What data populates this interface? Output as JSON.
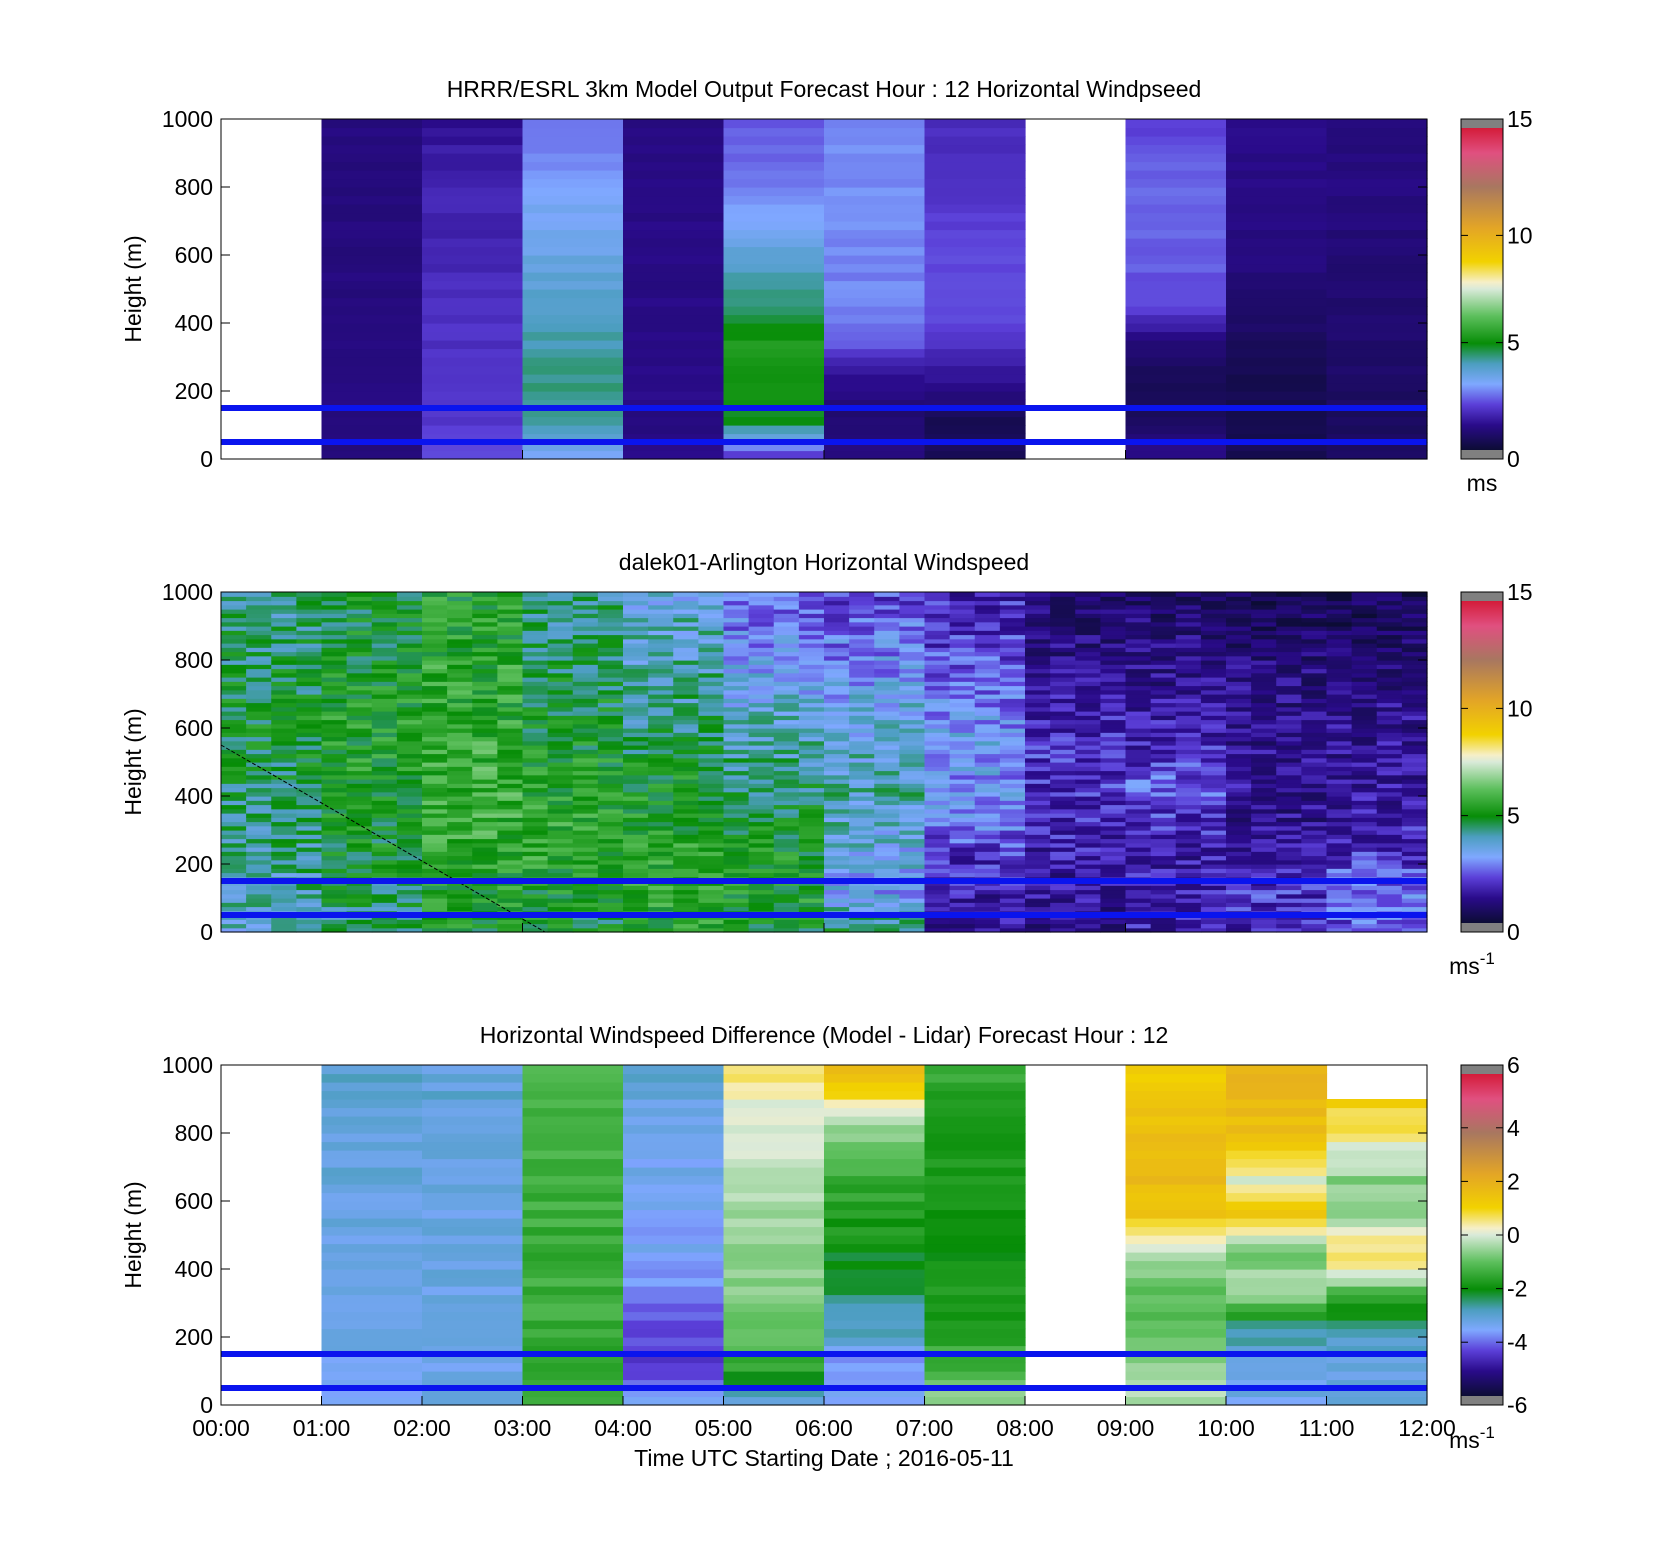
{
  "figure": {
    "xlabel": "Time UTC  Starting Date ; 2016-05-11"
  },
  "chart_data": [
    {
      "type": "heatmap",
      "title": "HRRR/ESRL 3km Model Output   Forecast Hour : 12 Horizontal Windpseed",
      "ylabel": "Height (m)",
      "ylim": [
        0,
        1000
      ],
      "yticks": [
        0,
        200,
        400,
        600,
        800,
        1000
      ],
      "x_categories": [
        "00:00",
        "01:00",
        "02:00",
        "03:00",
        "04:00",
        "05:00",
        "06:00",
        "07:00",
        "08:00",
        "09:00",
        "10:00",
        "11:00",
        "12:00"
      ],
      "colorbar": {
        "unit": "ms",
        "range": [
          0,
          15
        ],
        "ticks": [
          0,
          5,
          10,
          15
        ]
      },
      "reference_lines_m": [
        50,
        150
      ],
      "column_values": [
        null,
        [
          1.3,
          1.3,
          1.3,
          1.3,
          1.3,
          1.3,
          1.3,
          1.3,
          1.3,
          1.3
        ],
        [
          2.4,
          2.3,
          2.2,
          2.2,
          2.1,
          2.0,
          1.9,
          2.0,
          1.8,
          1.6
        ],
        [
          3.2,
          4.4,
          4.5,
          4.3,
          4.1,
          3.8,
          3.5,
          3.4,
          3.0,
          2.7
        ],
        [
          1.4,
          1.4,
          1.4,
          1.4,
          1.4,
          1.4,
          1.4,
          1.4,
          1.4,
          1.4
        ],
        [
          2.0,
          5.0,
          5.2,
          5.4,
          4.7,
          4.1,
          3.5,
          3.0,
          2.8,
          2.5
        ],
        [
          1.3,
          1.0,
          1.5,
          2.5,
          3.0,
          3.0,
          3.1,
          3.1,
          3.1,
          3.1
        ],
        [
          0.6,
          0.6,
          1.6,
          2.1,
          2.6,
          2.5,
          2.4,
          2.3,
          2.2,
          2.0
        ],
        null,
        [
          1.6,
          0.7,
          0.6,
          1.1,
          2.5,
          2.6,
          2.7,
          2.8,
          2.7,
          2.3
        ],
        [
          0.6,
          0.5,
          0.5,
          0.7,
          1.0,
          1.2,
          1.3,
          1.4,
          1.4,
          1.4
        ],
        [
          0.8,
          0.7,
          0.8,
          1.0,
          1.0,
          1.1,
          1.2,
          1.3,
          1.3,
          1.3
        ]
      ]
    },
    {
      "type": "heatmap",
      "title": "dalek01-Arlington  Horizontal Windspeed",
      "ylabel": "Height (m)",
      "ylim": [
        0,
        1000
      ],
      "yticks": [
        0,
        200,
        400,
        600,
        800,
        1000
      ],
      "x_categories": [
        "00:00",
        "01:00",
        "02:00",
        "03:00",
        "04:00",
        "05:00",
        "06:00",
        "07:00",
        "08:00",
        "09:00",
        "10:00",
        "11:00",
        "12:00"
      ],
      "colorbar": {
        "unit": "ms",
        "unit_exponent": "-1",
        "range": [
          0,
          15
        ],
        "ticks": [
          0,
          5,
          10,
          15
        ]
      },
      "reference_lines_m": [
        50,
        150
      ],
      "hourly_profiles": [
        [
          4.0,
          4.2,
          4.4,
          4.6,
          4.8,
          5.0,
          5.0,
          4.8,
          4.6,
          4.4
        ],
        [
          4.4,
          4.8,
          5.0,
          5.2,
          5.4,
          5.4,
          5.4,
          5.2,
          5.0,
          5.0
        ],
        [
          5.2,
          5.4,
          5.6,
          5.8,
          5.8,
          5.8,
          5.6,
          5.6,
          5.4,
          5.4
        ],
        [
          5.0,
          5.2,
          5.6,
          5.6,
          5.4,
          5.2,
          5.0,
          4.8,
          4.6,
          4.4
        ],
        [
          5.4,
          5.6,
          5.6,
          5.4,
          5.2,
          4.8,
          4.4,
          4.2,
          4.0,
          3.8
        ],
        [
          5.0,
          5.4,
          5.2,
          5.0,
          4.6,
          4.2,
          3.8,
          3.4,
          3.0,
          2.6
        ],
        [
          4.8,
          3.4,
          3.6,
          4.0,
          4.2,
          3.8,
          3.6,
          3.2,
          2.8,
          2.4
        ],
        [
          1.6,
          1.8,
          2.2,
          3.0,
          3.2,
          3.4,
          3.0,
          2.6,
          2.2,
          2.0
        ],
        [
          1.4,
          1.6,
          1.8,
          2.0,
          2.2,
          2.2,
          1.8,
          1.4,
          1.2,
          1.0
        ],
        [
          1.8,
          2.0,
          1.8,
          2.2,
          2.6,
          2.0,
          1.6,
          1.4,
          1.2,
          0.8
        ],
        [
          2.0,
          2.2,
          1.6,
          1.4,
          1.6,
          1.4,
          1.4,
          1.2,
          0.8,
          0.6
        ],
        [
          2.4,
          3.0,
          2.2,
          1.8,
          1.6,
          1.6,
          1.4,
          1.2,
          0.8,
          0.6
        ]
      ]
    },
    {
      "type": "heatmap",
      "title": "Horizontal Windspeed Difference (Model - Lidar) Forecast Hour : 12",
      "ylabel": "Height (m)",
      "xlabel": "Time UTC  Starting Date ; 2016-05-11",
      "ylim": [
        0,
        1000
      ],
      "yticks": [
        0,
        200,
        400,
        600,
        800,
        1000
      ],
      "x_categories": [
        "00:00",
        "01:00",
        "02:00",
        "03:00",
        "04:00",
        "05:00",
        "06:00",
        "07:00",
        "08:00",
        "09:00",
        "10:00",
        "11:00",
        "12:00"
      ],
      "colorbar": {
        "unit": "ms",
        "unit_exponent": "-1",
        "range": [
          -6,
          6
        ],
        "ticks": [
          -6,
          -4,
          -2,
          0,
          2,
          4,
          6
        ]
      },
      "reference_lines_m": [
        50,
        150
      ],
      "column_values": [
        null,
        [
          -3.2,
          -3.2,
          -3.1,
          -3.1,
          -3.0,
          -3.0,
          -2.9,
          -2.9,
          -2.8,
          -2.8
        ],
        [
          -3.1,
          -3.1,
          -3.0,
          -3.0,
          -3.1,
          -3.1,
          -3.0,
          -3.0,
          -2.9,
          -2.9
        ],
        [
          -1.4,
          -1.5,
          -1.4,
          -1.3,
          -1.4,
          -1.3,
          -1.3,
          -1.2,
          -1.2,
          -1.3
        ],
        [
          -3.4,
          -4.0,
          -4.2,
          -3.6,
          -3.3,
          -3.3,
          -3.2,
          -3.2,
          -3.0,
          -2.6
        ],
        [
          -3.2,
          -1.4,
          -1.0,
          -0.7,
          -0.5,
          -0.5,
          -0.3,
          0.0,
          0.2,
          0.5
        ],
        [
          -3.4,
          -3.6,
          -2.6,
          -2.3,
          -2.0,
          -1.6,
          -1.3,
          -0.8,
          0.5,
          2.0
        ],
        [
          -0.5,
          -1.2,
          -1.6,
          -1.7,
          -1.8,
          -1.8,
          -1.7,
          -1.6,
          -1.5,
          -1.4
        ],
        null,
        [
          -0.3,
          -0.6,
          -0.9,
          -1.0,
          -0.2,
          1.2,
          1.6,
          1.6,
          1.4,
          1.0
        ],
        [
          -3.1,
          -3.0,
          -2.5,
          -0.2,
          -0.8,
          1.2,
          0.0,
          1.4,
          1.6,
          1.6
        ],
        [
          -3.0,
          -3.1,
          -2.6,
          -1.0,
          0.8,
          -0.4,
          -0.6,
          0.3,
          1.0,
          null
        ]
      ]
    }
  ]
}
